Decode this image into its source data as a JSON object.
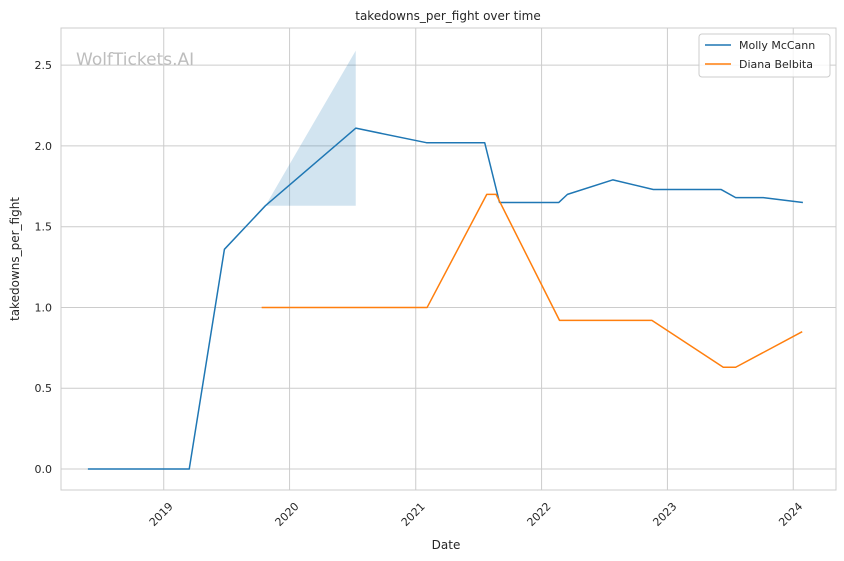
{
  "chart_data": {
    "type": "line",
    "title": "takedowns_per_fight over time",
    "xlabel": "Date",
    "ylabel": "takedowns_per_fight",
    "watermark": "WolfTickets.AI",
    "xlim": [
      "2018-03-09",
      "2024-05-04"
    ],
    "ylim": [
      -0.13,
      2.73
    ],
    "x_ticks": [
      "2019",
      "2020",
      "2021",
      "2022",
      "2023",
      "2024"
    ],
    "y_ticks": [
      "0.0",
      "0.5",
      "1.0",
      "1.5",
      "2.0",
      "2.5"
    ],
    "grid": true,
    "legend_position": "top-right",
    "series": [
      {
        "name": "Molly McCann",
        "color": "#1f77b4",
        "points": [
          [
            "2018-05-26",
            0.0
          ],
          [
            "2019-03-16",
            0.0
          ],
          [
            "2019-06-26",
            1.36
          ],
          [
            "2019-10-23",
            1.63
          ],
          [
            "2020-07-11",
            2.11
          ],
          [
            "2021-02-01",
            2.02
          ],
          [
            "2021-07-20",
            2.02
          ],
          [
            "2021-09-01",
            1.65
          ],
          [
            "2022-02-20",
            1.65
          ],
          [
            "2022-03-17",
            1.7
          ],
          [
            "2022-07-27",
            1.79
          ],
          [
            "2022-11-21",
            1.73
          ],
          [
            "2023-06-06",
            1.73
          ],
          [
            "2023-07-18",
            1.68
          ],
          [
            "2023-10-06",
            1.68
          ],
          [
            "2024-01-29",
            1.65
          ]
        ],
        "band": {
          "x": [
            "2019-10-23",
            "2020-07-11"
          ],
          "lower": [
            1.63,
            1.63
          ],
          "upper": [
            1.63,
            2.59
          ]
        }
      },
      {
        "name": "Diana Belbita",
        "color": "#ff7f0e",
        "points": [
          [
            "2019-10-12",
            1.0
          ],
          [
            "2021-02-03",
            1.0
          ],
          [
            "2021-07-26",
            1.7
          ],
          [
            "2021-08-22",
            1.7
          ],
          [
            "2022-02-22",
            0.92
          ],
          [
            "2022-11-17",
            0.92
          ],
          [
            "2023-06-12",
            0.63
          ],
          [
            "2023-07-18",
            0.63
          ],
          [
            "2024-01-27",
            0.85
          ]
        ]
      }
    ]
  }
}
